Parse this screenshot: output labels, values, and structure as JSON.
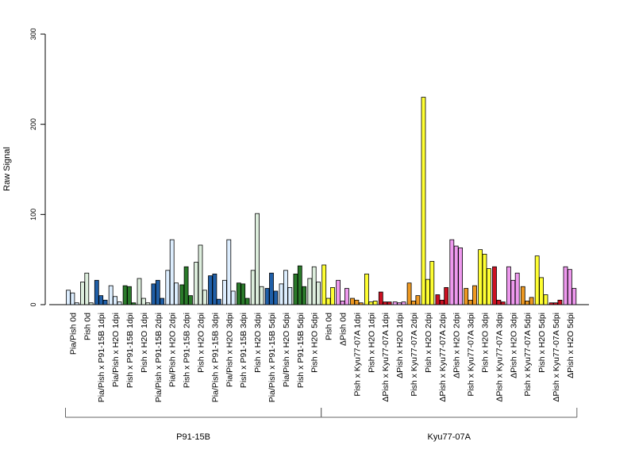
{
  "chart_data": {
    "type": "bar",
    "ylabel": "Raw Signal",
    "ylim": [
      0,
      300
    ],
    "yticks": [
      0,
      100,
      200,
      300
    ],
    "grid": false,
    "legend": "none",
    "groups": [
      {
        "name": "P91-15B",
        "categories": [
          {
            "label": "Pia/Pish 0d",
            "colors": [
              "#ddeeff",
              "#ddeeff",
              "#ddeeff"
            ],
            "values": [
              16,
              13,
              2
            ]
          },
          {
            "label": "Pish 0d",
            "colors": [
              "#ddeedd",
              "#ddeedd",
              "#ddeedd"
            ],
            "values": [
              25,
              35,
              2
            ]
          },
          {
            "label": "Pia/Pish x P91-15B 1dpi",
            "colors": [
              "#1f5fa8",
              "#1f5fa8",
              "#1f5fa8"
            ],
            "values": [
              27,
              10,
              5
            ]
          },
          {
            "label": "Pia/Pish x H2O 1dpi",
            "colors": [
              "#ddeeff",
              "#ddeeff",
              "#ddeeff"
            ],
            "values": [
              21,
              9,
              3
            ]
          },
          {
            "label": "Pish x P91-15B 1dpi",
            "colors": [
              "#2a7a2a",
              "#2a7a2a",
              "#2a7a2a"
            ],
            "values": [
              21,
              20,
              2
            ]
          },
          {
            "label": "Pish x H2O 1dpi",
            "colors": [
              "#ddeedd",
              "#ddeedd",
              "#ddeedd"
            ],
            "values": [
              29,
              7,
              2
            ]
          },
          {
            "label": "Pia/Pish x P91-15B 2dpi",
            "colors": [
              "#1f5fa8",
              "#1f5fa8",
              "#1f5fa8"
            ],
            "values": [
              23,
              27,
              7
            ]
          },
          {
            "label": "Pia/Pish x H2O 2dpi",
            "colors": [
              "#ddeeff",
              "#ddeeff",
              "#ddeeff"
            ],
            "values": [
              38,
              72,
              24
            ]
          },
          {
            "label": "Pish x P91-15B 2dpi",
            "colors": [
              "#2a7a2a",
              "#2a7a2a",
              "#2a7a2a"
            ],
            "values": [
              22,
              42,
              10
            ]
          },
          {
            "label": "Pish x H2O 2dpi",
            "colors": [
              "#ddeedd",
              "#ddeedd",
              "#ddeedd"
            ],
            "values": [
              47,
              66,
              16
            ]
          },
          {
            "label": "Pia/Pish x P91-15B 3dpi",
            "colors": [
              "#1f5fa8",
              "#1f5fa8",
              "#1f5fa8"
            ],
            "values": [
              32,
              34,
              6
            ]
          },
          {
            "label": "Pia/Pish x H2O 3dpi",
            "colors": [
              "#ddeeff",
              "#ddeeff",
              "#ddeeff"
            ],
            "values": [
              27,
              72,
              15
            ]
          },
          {
            "label": "Pish x P91-15B 3dpi",
            "colors": [
              "#2a7a2a",
              "#2a7a2a",
              "#2a7a2a"
            ],
            "values": [
              24,
              23,
              7
            ]
          },
          {
            "label": "Pish x H2O 3dpi",
            "colors": [
              "#ddeedd",
              "#ddeedd",
              "#ddeedd"
            ],
            "values": [
              38,
              101,
              20
            ]
          },
          {
            "label": "Pia/Pish x P91-15B 5dpi",
            "colors": [
              "#1f5fa8",
              "#1f5fa8",
              "#1f5fa8"
            ],
            "values": [
              18,
              35,
              15
            ]
          },
          {
            "label": "Pia/Pish x H2O 5dpi",
            "colors": [
              "#ddeeff",
              "#ddeeff",
              "#ddeeff"
            ],
            "values": [
              23,
              38,
              19
            ]
          },
          {
            "label": "Pish x P91-15B 5dpi",
            "colors": [
              "#2a7a2a",
              "#2a7a2a",
              "#2a7a2a"
            ],
            "values": [
              34,
              43,
              20
            ]
          },
          {
            "label": "Pish x H2O 5dpi",
            "colors": [
              "#ddeedd",
              "#ddeedd",
              "#ddeedd"
            ],
            "values": [
              29,
              42,
              25
            ]
          }
        ]
      },
      {
        "name": "Kyu77-07A",
        "categories": [
          {
            "label": "Pish 0d",
            "colors": [
              "#ffff33",
              "#ffff33",
              "#ffff33"
            ],
            "values": [
              44,
              7,
              19
            ]
          },
          {
            "label": "ΔPish 0d",
            "colors": [
              "#ee99ee",
              "#ee99ee",
              "#ee99ee"
            ],
            "values": [
              27,
              4,
              18
            ]
          },
          {
            "label": "Pish x Kyu77-07A 1dpi",
            "colors": [
              "#ee9922",
              "#ee9922",
              "#ee9922"
            ],
            "values": [
              7,
              5,
              2
            ]
          },
          {
            "label": "Pish x H2O 1dpi",
            "colors": [
              "#ffff33",
              "#ffff33",
              "#ffff33"
            ],
            "values": [
              34,
              3,
              4
            ]
          },
          {
            "label": "ΔPish x Kyu77-07A 1dpi",
            "colors": [
              "#cc1122",
              "#cc1122",
              "#cc1122"
            ],
            "values": [
              14,
              3,
              3
            ]
          },
          {
            "label": "ΔPish x H2O 1dpi",
            "colors": [
              "#ee99ee",
              "#ee99ee",
              "#ee99ee"
            ],
            "values": [
              3,
              2,
              3
            ]
          },
          {
            "label": "Pish x Kyu77-07A 2dpi",
            "colors": [
              "#ee9922",
              "#ee9922",
              "#ee9922"
            ],
            "values": [
              24,
              4,
              10
            ]
          },
          {
            "label": "Pish x H2O 2dpi",
            "colors": [
              "#ffff33",
              "#ffff33",
              "#ffff33"
            ],
            "values": [
              230,
              28,
              48
            ]
          },
          {
            "label": "ΔPish x Kyu77-07A 2dpi",
            "colors": [
              "#cc1122",
              "#cc1122",
              "#cc1122"
            ],
            "values": [
              11,
              5,
              19
            ]
          },
          {
            "label": "ΔPish x H2O 2dpi",
            "colors": [
              "#ee99ee",
              "#ee99ee",
              "#ee99ee"
            ],
            "values": [
              72,
              65,
              63
            ]
          },
          {
            "label": "Pish x Kyu77-07A 3dpi",
            "colors": [
              "#ee9922",
              "#ee9922",
              "#ee9922"
            ],
            "values": [
              18,
              5,
              21
            ]
          },
          {
            "label": "Pish x H2O 3dpi",
            "colors": [
              "#ffff33",
              "#ffff33",
              "#ffff33"
            ],
            "values": [
              61,
              56,
              40
            ]
          },
          {
            "label": "ΔPish x Kyu77-07A 3dpi",
            "colors": [
              "#cc1122",
              "#cc1122",
              "#cc1122"
            ],
            "values": [
              42,
              5,
              3
            ]
          },
          {
            "label": "ΔPish x H2O 3dpi",
            "colors": [
              "#ee99ee",
              "#ee99ee",
              "#ee99ee"
            ],
            "values": [
              42,
              27,
              35
            ]
          },
          {
            "label": "Pish x Kyu77-07A 5dpi",
            "colors": [
              "#ee9922",
              "#ee9922",
              "#ee9922"
            ],
            "values": [
              20,
              4,
              8
            ]
          },
          {
            "label": "Pish x H2O 5dpi",
            "colors": [
              "#ffff33",
              "#ffff33",
              "#ffff33"
            ],
            "values": [
              54,
              30,
              11
            ]
          },
          {
            "label": "ΔPish x Kyu77-07A 5dpi",
            "colors": [
              "#cc1122",
              "#cc1122",
              "#cc1122"
            ],
            "values": [
              2,
              2,
              5
            ]
          },
          {
            "label": "ΔPish x H2O 5dpi",
            "colors": [
              "#ee99ee",
              "#ee99ee",
              "#ee99ee"
            ],
            "values": [
              42,
              39,
              18
            ]
          }
        ]
      }
    ]
  }
}
